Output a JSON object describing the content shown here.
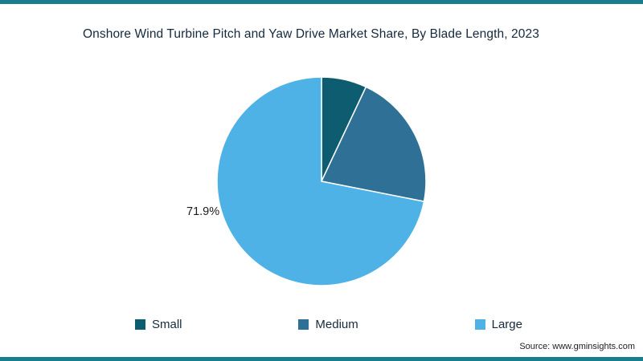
{
  "page": {
    "title": "Onshore Wind Turbine Pitch and Yaw Drive Market Share, By Blade Length, 2023",
    "source": "Source: www.gminsights.com",
    "accent_bar_color": "#177e90",
    "background_color": "#ffffff",
    "title_color": "#16293d"
  },
  "chart_data": {
    "type": "pie",
    "title": "Onshore Wind Turbine Pitch and Yaw Drive Market Share, By Blade Length, 2023",
    "categories": [
      "Small",
      "Medium",
      "Large"
    ],
    "values": [
      7.0,
      21.1,
      71.9
    ],
    "colors": [
      "#0d5c70",
      "#2f7196",
      "#4fb2e6"
    ],
    "start_angle": 0,
    "direction": "clockwise",
    "legend_position": "bottom",
    "annotation": "71.9%",
    "annotation_target": "Large"
  }
}
